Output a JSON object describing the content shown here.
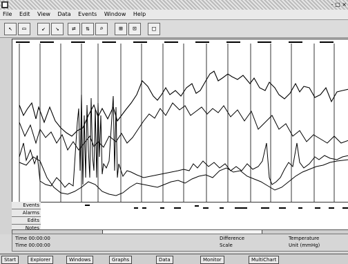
{
  "window": {
    "title": "",
    "controls": "- □ ×"
  },
  "menu": {
    "items": [
      "File",
      "Edit",
      "View",
      "Data",
      "Events",
      "Window",
      "Help"
    ]
  },
  "toolbar": {
    "buttons": [
      "↖",
      "▭",
      "↙",
      "↘",
      "⇄",
      "⇅",
      "⌕",
      "⊞",
      "⊡",
      "□"
    ]
  },
  "panel_rows": {
    "labels": [
      "Events",
      "Alarms",
      "Edits",
      "Notes"
    ]
  },
  "info": {
    "left_top": "Time 00:00:00",
    "left_bottom": "Time 00:00:00",
    "mid_top": "Difference",
    "mid_bottom": "Scale",
    "right_top": "Temperature",
    "right_bottom": "Unit (mmHg)"
  },
  "taskbar": {
    "items": [
      "Start",
      "Explorer",
      "Windows",
      "Graphs",
      "Data",
      "Monitor",
      "MultiChart"
    ]
  },
  "colors": {
    "background": "#d9d9d9",
    "plot_bg": "#ffffff",
    "trace": "#000000"
  }
}
